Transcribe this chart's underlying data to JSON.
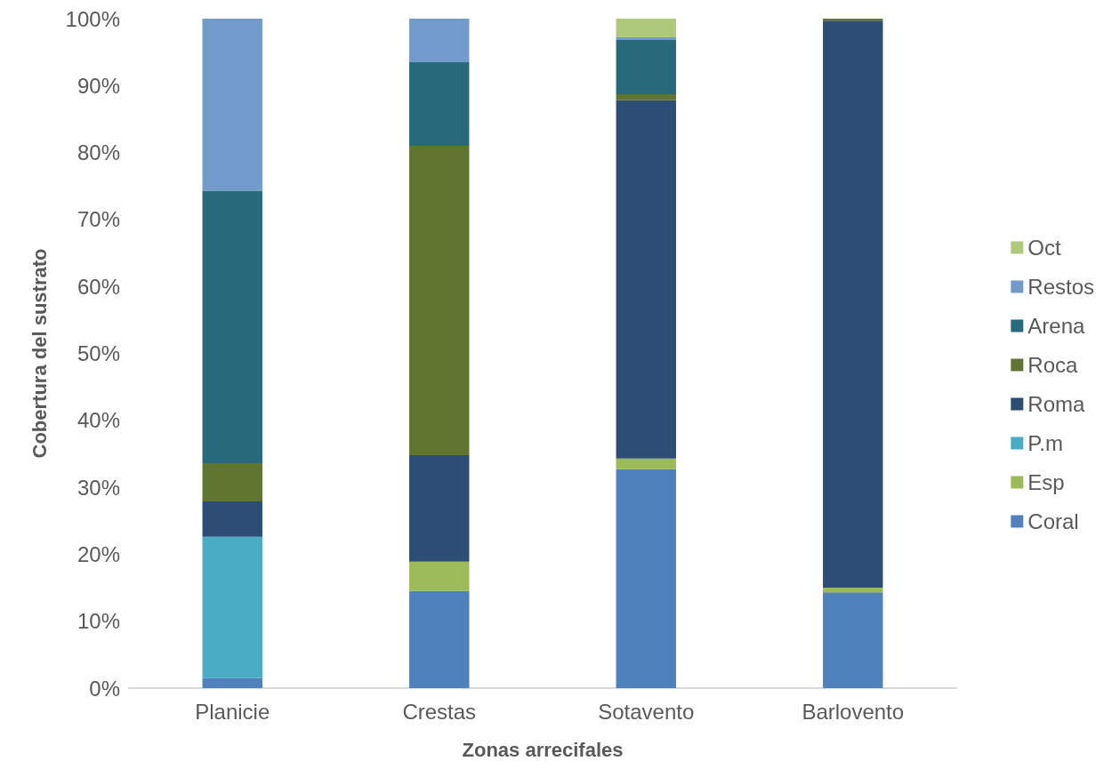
{
  "chart_data": {
    "type": "bar",
    "stacked": true,
    "xlabel": "Zonas arrecifales",
    "ylabel": "Cobertura del sustrato",
    "categories": [
      "Planicie",
      "Crestas",
      "Sotavento",
      "Barlovento"
    ],
    "series": [
      {
        "name": "Coral",
        "color": "#4f81bd",
        "values": [
          1.5,
          14.5,
          32.7,
          14.3
        ]
      },
      {
        "name": "Esp",
        "color": "#9bbb59",
        "values": [
          0,
          4.4,
          1.6,
          0.7
        ]
      },
      {
        "name": "P.m",
        "color": "#4bacc6",
        "values": [
          21.1,
          0,
          0,
          0
        ]
      },
      {
        "name": "Roma",
        "color": "#2c4d75",
        "values": [
          5.3,
          15.9,
          53.5,
          84.7
        ]
      },
      {
        "name": "Roca",
        "color": "#5f7530",
        "values": [
          5.7,
          46.2,
          0.9,
          0.3
        ]
      },
      {
        "name": "Arena",
        "color": "#276a7c",
        "values": [
          40.7,
          12.5,
          8.1,
          0
        ]
      },
      {
        "name": "Restos",
        "color": "#729aca",
        "values": [
          25.7,
          6.5,
          0.4,
          0
        ]
      },
      {
        "name": "Oct",
        "color": "#afc97a",
        "values": [
          0,
          0,
          2.8,
          0
        ]
      }
    ],
    "ylim": [
      0,
      100
    ],
    "yticks": [
      {
        "value": 0,
        "label": "0%"
      },
      {
        "value": 10,
        "label": "10%"
      },
      {
        "value": 20,
        "label": "20%"
      },
      {
        "value": 30,
        "label": "30%"
      },
      {
        "value": 40,
        "label": "40%"
      },
      {
        "value": 50,
        "label": "50%"
      },
      {
        "value": 60,
        "label": "60%"
      },
      {
        "value": 70,
        "label": "70%"
      },
      {
        "value": 80,
        "label": "80%"
      },
      {
        "value": 90,
        "label": "90%"
      },
      {
        "value": 100,
        "label": "100%"
      }
    ],
    "grid": false,
    "legend": "right"
  }
}
